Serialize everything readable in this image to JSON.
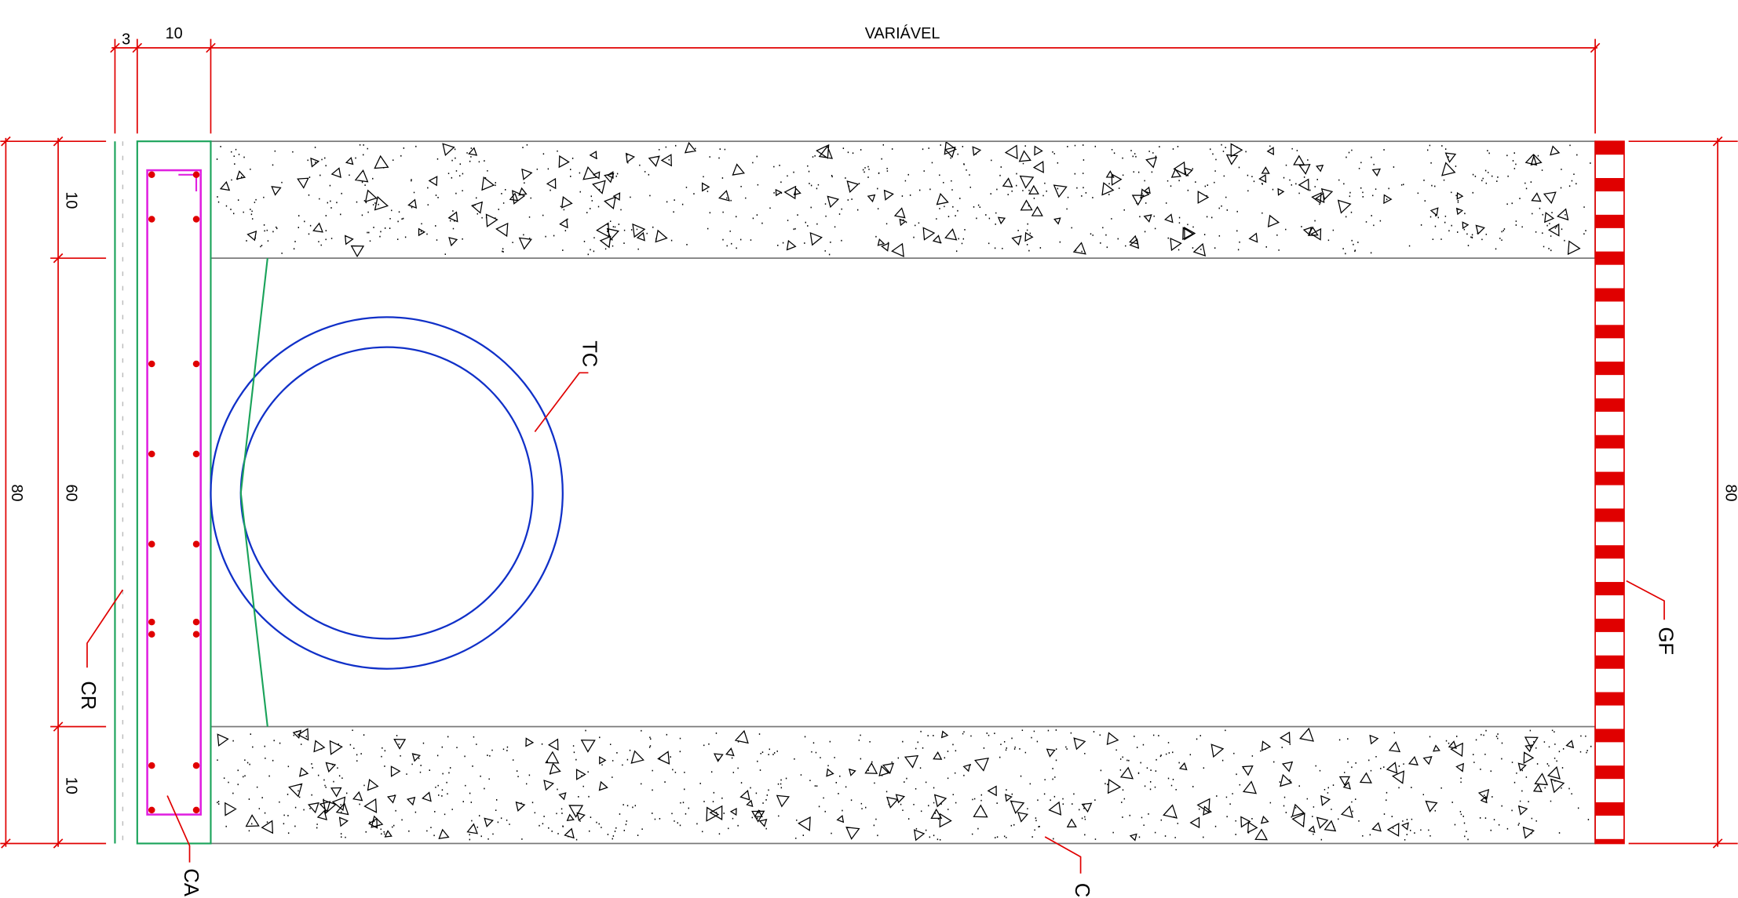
{
  "dimensions": {
    "top": [
      "3",
      "10",
      "VARIÁVEL"
    ],
    "left": [
      "10",
      "60",
      "10"
    ],
    "overall_left": "80",
    "overall_right": "80"
  },
  "labels": {
    "tc": "TC",
    "cr": "CR",
    "ca": "CA",
    "gf": "GF",
    "c": "C"
  }
}
